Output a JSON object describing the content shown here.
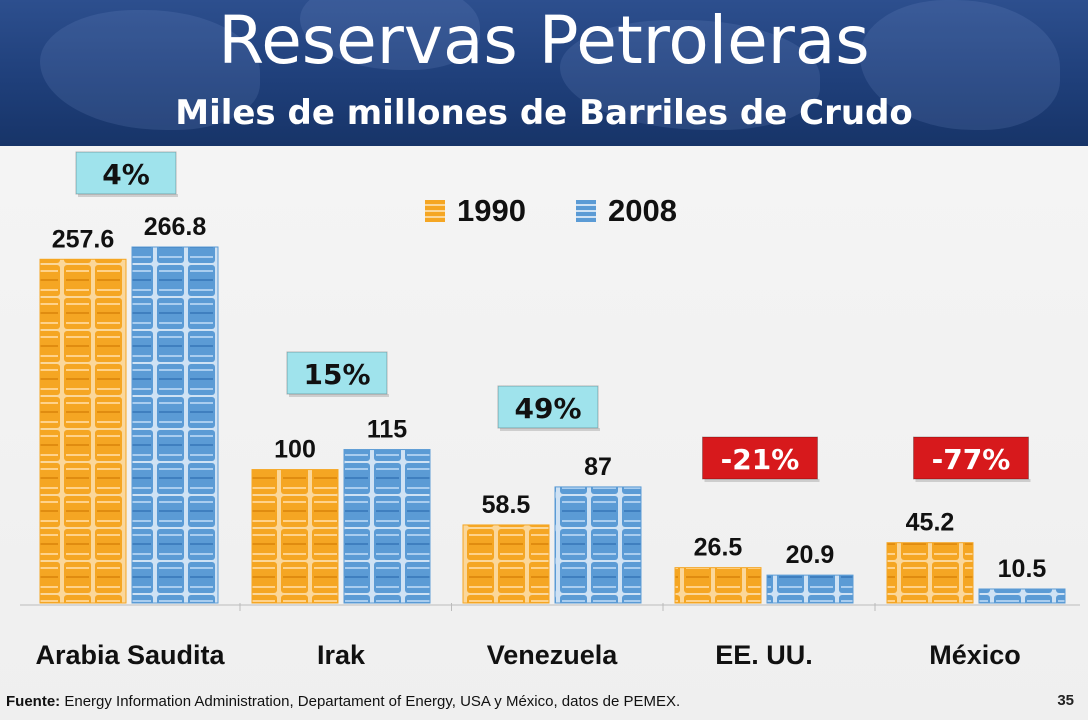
{
  "title": "Reservas Petroleras",
  "subtitle": "Miles de millones de Barriles de Crudo",
  "legend": [
    {
      "label": "1990",
      "color": "#f5a623"
    },
    {
      "label": "2008",
      "color": "#5b9bd5"
    }
  ],
  "footer": {
    "label": "Fuente:",
    "text": "Energy Information Administration, Departament of Energy, USA y México, datos de PEMEX."
  },
  "page_number": "35",
  "chart_data": {
    "type": "bar",
    "categories": [
      "Arabia Saudita",
      "Irak",
      "Venezuela",
      "EE. UU.",
      "México"
    ],
    "series": [
      {
        "name": "1990",
        "values": [
          257.6,
          100,
          58.5,
          26.5,
          45.2
        ],
        "labels": [
          "257.6",
          "100",
          "58.5",
          "26.5",
          "45.2"
        ],
        "color": "#f5a623"
      },
      {
        "name": "2008",
        "values": [
          266.8,
          115,
          87,
          20.9,
          10.5
        ],
        "labels": [
          "266.8",
          "115",
          "87",
          "20.9",
          "10.5"
        ],
        "color": "#5b9bd5"
      }
    ],
    "changes": [
      "4%",
      "15%",
      "49%",
      "-21%",
      "-77%"
    ],
    "change_colors": [
      "#9fe3ec",
      "#9fe3ec",
      "#9fe3ec",
      "#d7191c",
      "#d7191c"
    ],
    "change_text_colors": [
      "#111111",
      "#111111",
      "#111111",
      "#ffffff",
      "#ffffff"
    ],
    "ylim": [
      0,
      266.8
    ]
  }
}
